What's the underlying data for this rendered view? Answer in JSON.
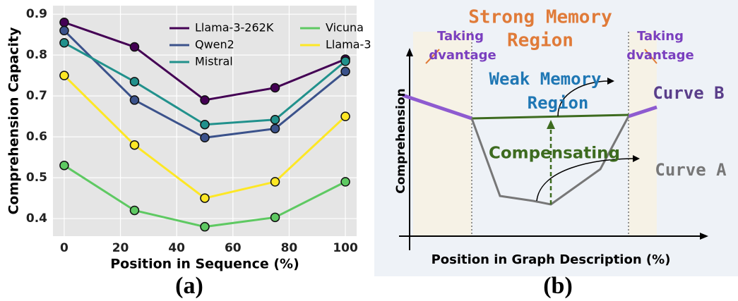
{
  "chart_data": {
    "type": "line",
    "x_label": "Position in Sequence (%)",
    "y_label": "Comprehension Capacity",
    "x": [
      0,
      25,
      50,
      75,
      100
    ],
    "series": [
      {
        "name": "Llama-3-262K",
        "color": "#440154",
        "values": [
          0.88,
          0.82,
          0.69,
          0.72,
          0.79
        ]
      },
      {
        "name": "Qwen2",
        "color": "#3b528b",
        "values": [
          0.86,
          0.69,
          0.598,
          0.62,
          0.76
        ]
      },
      {
        "name": "Mistral",
        "color": "#21918c",
        "values": [
          0.83,
          0.735,
          0.63,
          0.642,
          0.785
        ]
      },
      {
        "name": "Vicuna",
        "color": "#5ec962",
        "values": [
          0.53,
          0.42,
          0.38,
          0.403,
          0.49
        ]
      },
      {
        "name": "Llama-3",
        "color": "#fde725",
        "values": [
          0.75,
          0.58,
          0.45,
          0.49,
          0.65
        ]
      }
    ],
    "xlim": [
      -4,
      104
    ],
    "xticks": [
      0,
      20,
      40,
      60,
      80,
      100
    ],
    "ylim": [
      0.357,
      0.921
    ],
    "yticks": [
      0.4,
      0.5,
      0.6,
      0.7,
      0.8,
      0.9
    ],
    "grid": true,
    "legend": "upper right"
  },
  "diagram": {
    "strong_memory": [
      "Strong Memory",
      "Region"
    ],
    "taking_advantage_left": [
      "Taking",
      "dvantage"
    ],
    "taking_advantage_right": [
      "Taking",
      "dvantage"
    ],
    "weak_memory": [
      "Weak Memory",
      "Region"
    ],
    "curve_b": "Curve B",
    "compensating": "Compensating",
    "curve_a": "Curve A",
    "y_label": "Comprehension",
    "x_label": "Position in Graph Description (%)"
  },
  "captions": [
    "(a)",
    "(b)"
  ]
}
